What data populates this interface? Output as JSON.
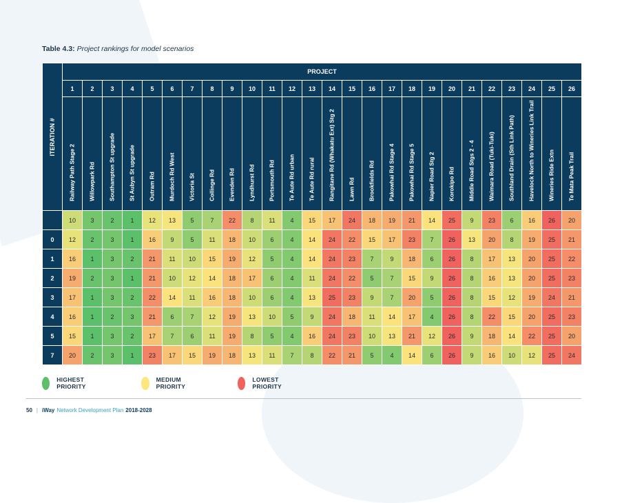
{
  "caption": {
    "label": "Table 4.3:",
    "text": "Project rankings for model scenarios"
  },
  "table": {
    "iteration_header": "ITERATION #",
    "project_header": "PROJECT",
    "project_numbers": [
      "1",
      "2",
      "3",
      "4",
      "5",
      "6",
      "7",
      "8",
      "9",
      "10",
      "11",
      "12",
      "13",
      "14",
      "15",
      "16",
      "17",
      "18",
      "19",
      "20",
      "21",
      "22",
      "23",
      "24",
      "25",
      "26"
    ],
    "project_names": [
      "Railway Path Stage 2",
      "Willowpark Rd",
      "Southampton St upgrade",
      "St Aubyn St upgrade",
      "Outram Rd",
      "Murdoch Rd West",
      "Victoria St",
      "Collinge Rd",
      "Evenden Rd",
      "Lyndhurst Rd",
      "Portsmouth Rd",
      "Te Aute Rd urban",
      "Te Aute Rd rural",
      "Rangitane Rd (Whakatu Ext) Stg 2",
      "Lawn Rd",
      "Brookfields Rd",
      "Pakowhai Rd Stage 4",
      "Pakowhai Rd Stage 5",
      "Napier Road Stg 2",
      "Korokipo Rd",
      "Middle Road Stgs 2 - 4",
      "Waimara Road (Tuki-Tuki)",
      "Southland Drain (Sth Link Path)",
      "Havelock North to Wineries Link Trail",
      "Wineries Ride Extn",
      "Te Mata Peak Trail"
    ],
    "rows": [
      {
        "iteration": "",
        "values": [
          10,
          3,
          2,
          1,
          12,
          13,
          5,
          7,
          22,
          8,
          11,
          4,
          15,
          17,
          24,
          18,
          19,
          21,
          14,
          25,
          9,
          23,
          6,
          16,
          26,
          20
        ]
      },
      {
        "iteration": "0",
        "values": [
          12,
          2,
          3,
          1,
          16,
          9,
          5,
          11,
          18,
          10,
          6,
          4,
          14,
          24,
          22,
          15,
          17,
          23,
          7,
          26,
          13,
          20,
          8,
          19,
          25,
          21
        ]
      },
      {
        "iteration": "1",
        "values": [
          16,
          1,
          3,
          2,
          21,
          11,
          10,
          15,
          19,
          12,
          5,
          4,
          14,
          24,
          23,
          7,
          9,
          18,
          6,
          26,
          8,
          17,
          13,
          20,
          25,
          22
        ]
      },
      {
        "iteration": "2",
        "values": [
          19,
          2,
          3,
          1,
          21,
          10,
          12,
          14,
          18,
          17,
          6,
          4,
          11,
          24,
          22,
          5,
          7,
          15,
          9,
          26,
          8,
          16,
          13,
          20,
          25,
          23
        ]
      },
      {
        "iteration": "3",
        "values": [
          17,
          1,
          3,
          2,
          22,
          14,
          11,
          16,
          18,
          10,
          6,
          4,
          13,
          25,
          23,
          9,
          7,
          20,
          5,
          26,
          8,
          15,
          12,
          19,
          24,
          21
        ]
      },
      {
        "iteration": "4",
        "values": [
          16,
          1,
          2,
          3,
          21,
          6,
          7,
          12,
          19,
          13,
          10,
          5,
          9,
          24,
          18,
          11,
          14,
          17,
          4,
          26,
          8,
          22,
          15,
          20,
          25,
          23
        ]
      },
      {
        "iteration": "5",
        "values": [
          15,
          1,
          3,
          2,
          17,
          7,
          6,
          11,
          19,
          8,
          5,
          4,
          16,
          24,
          23,
          10,
          13,
          21,
          12,
          26,
          9,
          18,
          14,
          22,
          25,
          20
        ]
      },
      {
        "iteration": "7",
        "values": [
          20,
          2,
          3,
          1,
          23,
          17,
          15,
          19,
          18,
          13,
          11,
          7,
          8,
          22,
          21,
          5,
          4,
          14,
          6,
          26,
          9,
          16,
          10,
          12,
          25,
          24
        ]
      }
    ]
  },
  "legend": [
    {
      "label": "HIGHEST PRIORITY",
      "color": "#5cbf6a"
    },
    {
      "label": "MEDIUM PRIORITY",
      "color": "#fbe77d"
    },
    {
      "label": "LOWEST PRIORITY",
      "color": "#f0625e"
    }
  ],
  "footer": {
    "page": "50",
    "brand": "iWay",
    "doc": "Network Development Plan",
    "years": "2018-2028"
  }
}
